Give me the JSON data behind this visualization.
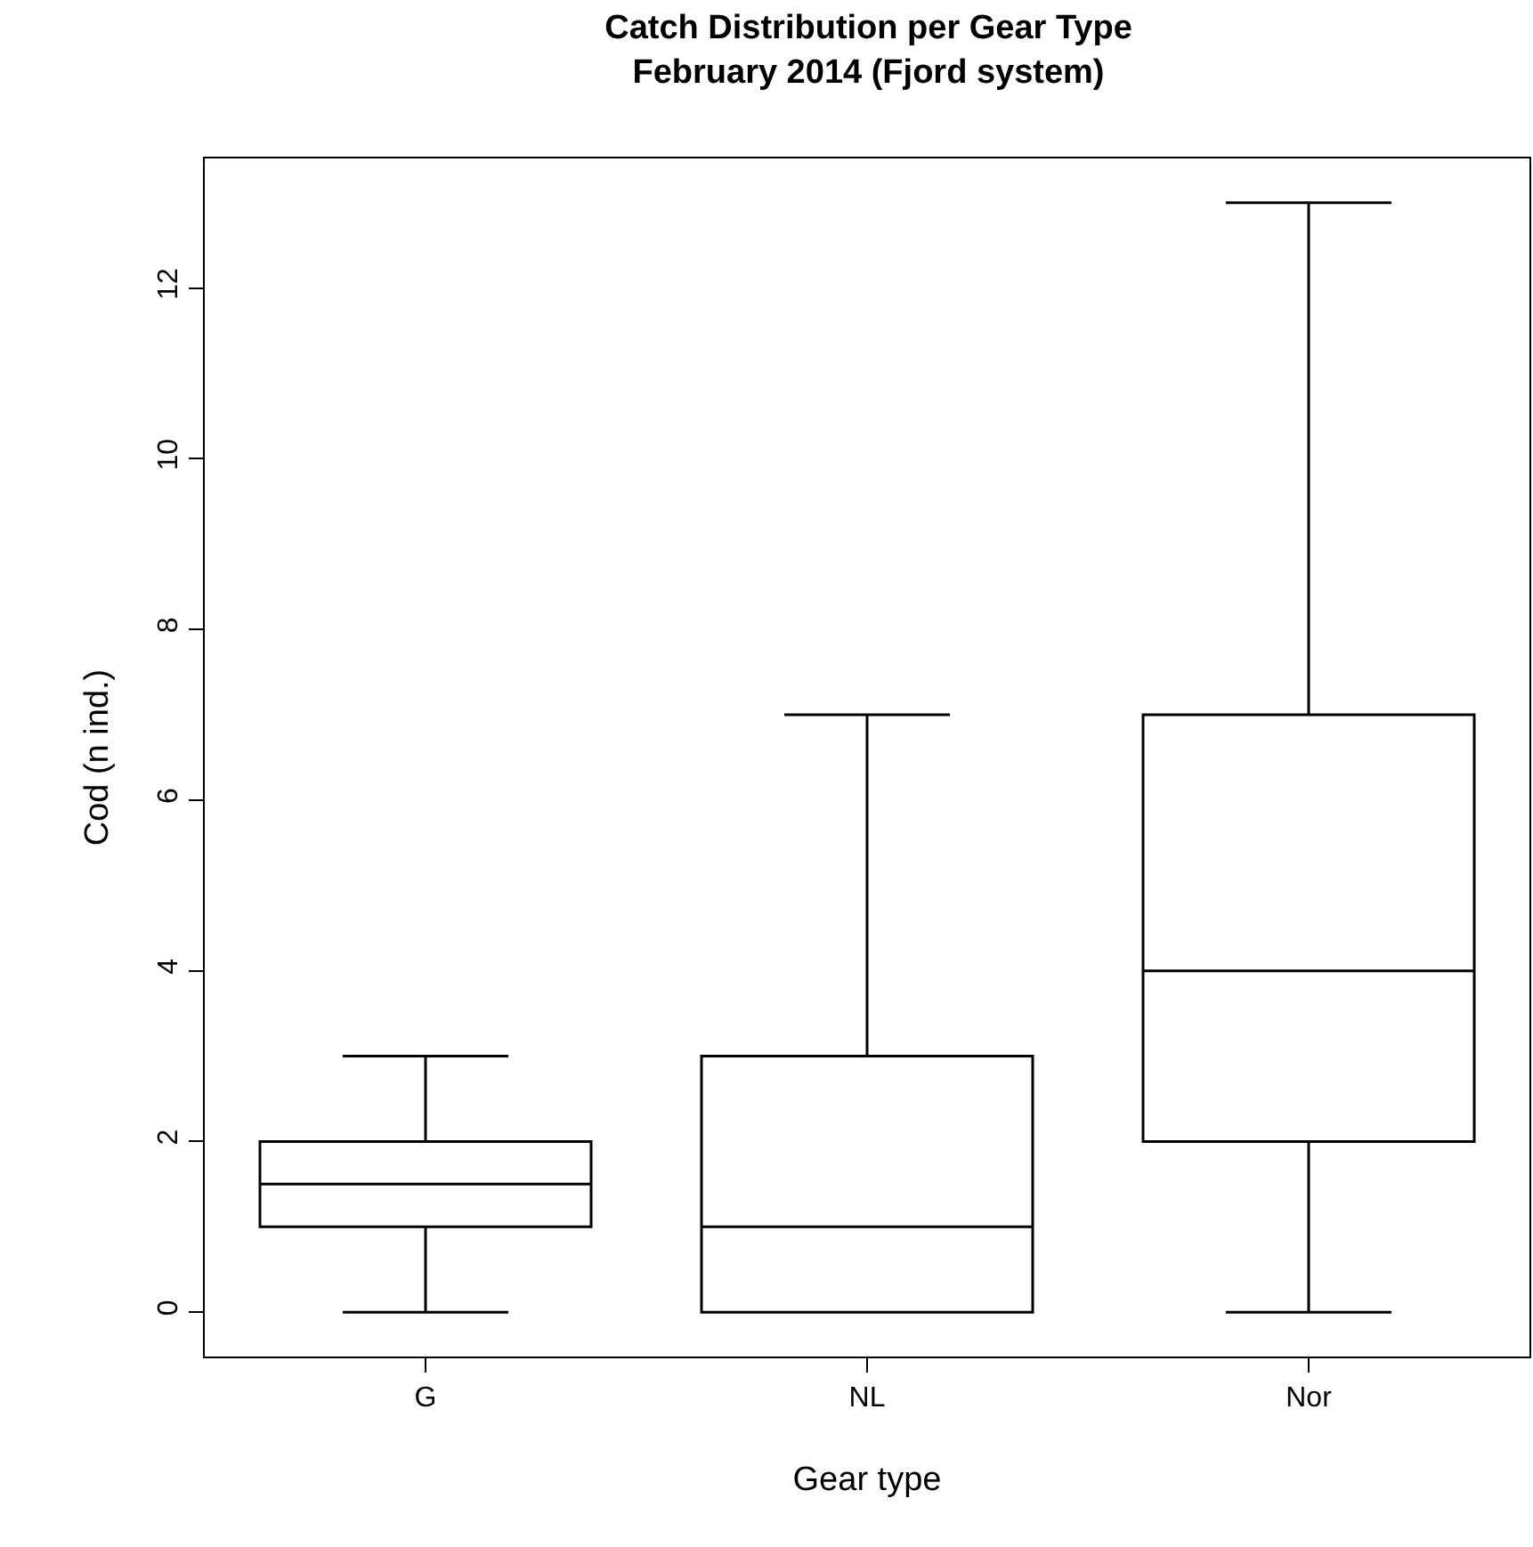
{
  "chart_data": {
    "type": "box",
    "title": "Catch Distribution per Gear Type\nFebruary 2014 (Fjord system)",
    "xlabel": "Gear type",
    "ylabel": "Cod (n ind.)",
    "categories": [
      "G",
      "NL",
      "Nor"
    ],
    "boxes": [
      {
        "low": 0,
        "q1": 1,
        "median": 1.5,
        "q3": 2,
        "high": 3
      },
      {
        "low": 0,
        "q1": 0,
        "median": 1,
        "q3": 3,
        "high": 7
      },
      {
        "low": 0,
        "q1": 2,
        "median": 4,
        "q3": 7,
        "high": 13
      }
    ],
    "color": "#000000",
    "ylim": [
      -0.52,
      13.52
    ],
    "yticks": [
      0,
      2,
      4,
      6,
      8,
      10,
      12
    ],
    "grid": false,
    "legend": false
  }
}
